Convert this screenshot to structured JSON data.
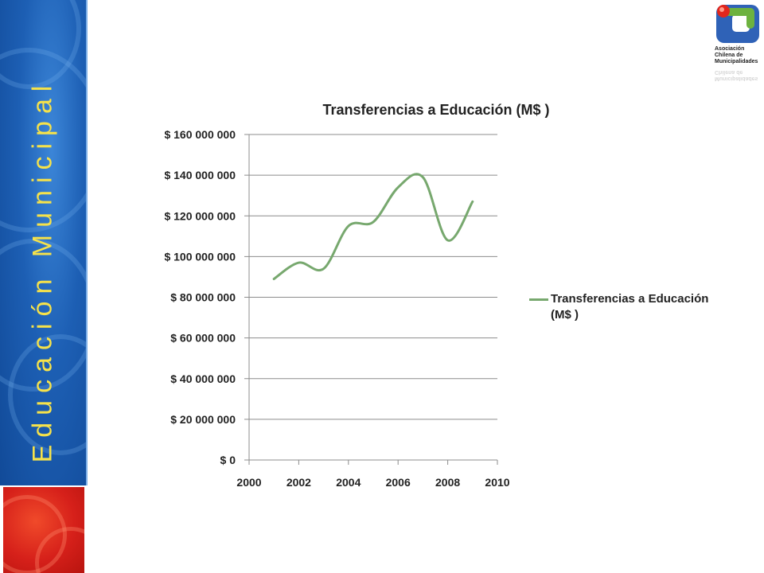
{
  "slide": {
    "vertical_title": "Educación Municipal",
    "logo_text": [
      "Asociación",
      "Chilena de",
      "Municipalidades"
    ]
  },
  "colors": {
    "series": "#77a86e",
    "gridline": "#8c8c8c",
    "banner_blue": "#1d5fb4",
    "banner_text": "#f6e24a",
    "banner_red": "#d6201a"
  },
  "chart_data": {
    "type": "line",
    "title": "Transferencias a Educación (M$ )",
    "xlabel": "",
    "ylabel": "",
    "xlim": [
      2000,
      2010
    ],
    "ylim": [
      0,
      160000000
    ],
    "x_ticks": [
      2000,
      2002,
      2004,
      2006,
      2008,
      2010
    ],
    "y_ticks": [
      0,
      20000000,
      40000000,
      60000000,
      80000000,
      100000000,
      120000000,
      140000000,
      160000000
    ],
    "y_tick_labels": [
      "$ 0",
      "$ 20 000 000",
      "$ 40 000 000",
      "$ 60 000 000",
      "$ 80 000 000",
      "$ 100 000 000",
      "$ 120 000 000",
      "$ 140 000 000",
      "$ 160 000 000"
    ],
    "grid": true,
    "legend_position": "right",
    "smooth": true,
    "series": [
      {
        "name": "Transferencias a Educación (M$ )",
        "x": [
          2001,
          2002,
          2003,
          2004,
          2005,
          2006,
          2007,
          2008,
          2009
        ],
        "values": [
          89000000,
          97000000,
          94000000,
          115000000,
          117000000,
          134000000,
          139000000,
          108000000,
          127000000
        ]
      }
    ]
  }
}
